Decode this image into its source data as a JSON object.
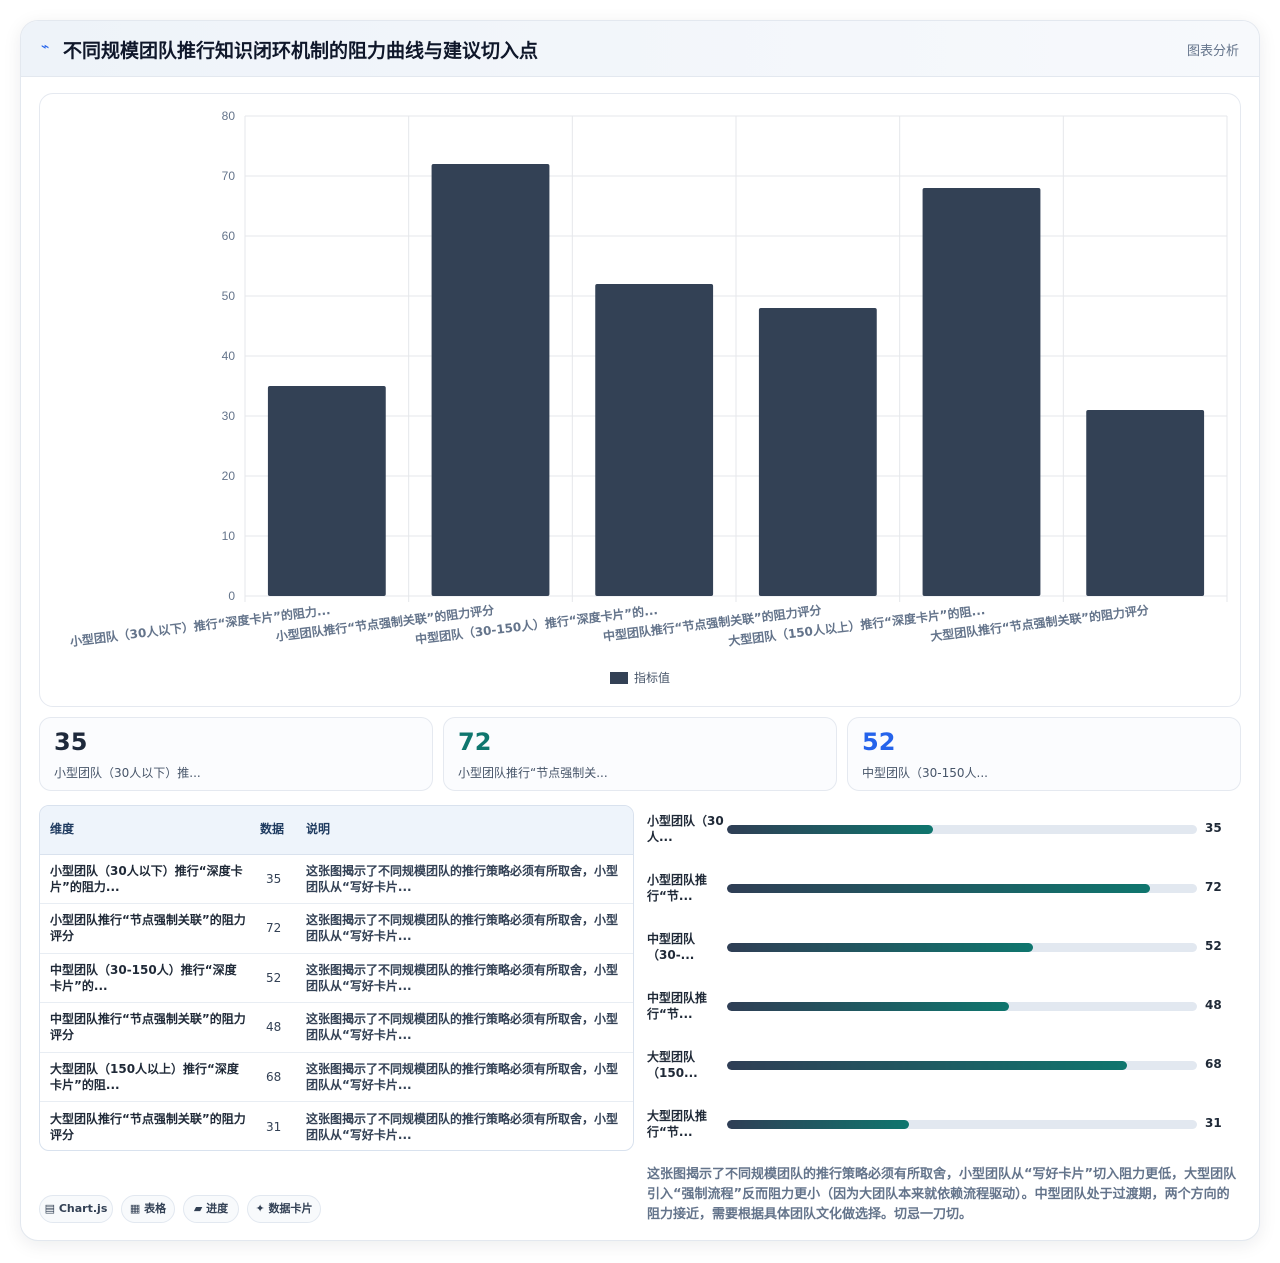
{
  "header": {
    "icon": "pulse-icon",
    "title": "不同规模团队推行知识闭环机制的阻力曲线与建议切入点",
    "link": "图表分析"
  },
  "chart_data": {
    "type": "bar",
    "categories": [
      "小型团队（30人以下）推行“深度卡片”的阻力...",
      "小型团队推行“节点强制关联”的阻力评分",
      "中型团队（30-150人）推行“深度卡片”的...",
      "中型团队推行“节点强制关联”的阻力评分",
      "大型团队（150人以上）推行“深度卡片”的阻...",
      "大型团队推行“节点强制关联”的阻力评分"
    ],
    "series": [
      {
        "name": "指标值",
        "values": [
          35,
          72,
          52,
          48,
          68,
          31
        ]
      }
    ],
    "ylim": [
      0,
      80
    ],
    "yticks": [
      0,
      10,
      20,
      30,
      40,
      50,
      60,
      70,
      80
    ],
    "grid": true,
    "legend_position": "bottom",
    "bar_color": "#334155"
  },
  "stats": [
    {
      "value": "35",
      "label": "小型团队（30人以下）推...",
      "color": "#1e293b"
    },
    {
      "value": "72",
      "label": "小型团队推行“节点强制关...",
      "color": "#0f766e"
    },
    {
      "value": "52",
      "label": "中型团队（30-150人...",
      "color": "#2563eb"
    }
  ],
  "table": {
    "headers": [
      "维度",
      "数据",
      "说明"
    ],
    "rows": [
      {
        "dim": "小型团队（30人以下）推行“深度卡片”的阻力...",
        "value": "35",
        "desc": "这张图揭示了不同规模团队的推行策略必须有所取舍，小型团队从“写好卡片..."
      },
      {
        "dim": "小型团队推行“节点强制关联”的阻力评分",
        "value": "72",
        "desc": "这张图揭示了不同规模团队的推行策略必须有所取舍，小型团队从“写好卡片..."
      },
      {
        "dim": "中型团队（30-150人）推行“深度卡片”的...",
        "value": "52",
        "desc": "这张图揭示了不同规模团队的推行策略必须有所取舍，小型团队从“写好卡片..."
      },
      {
        "dim": "中型团队推行“节点强制关联”的阻力评分",
        "value": "48",
        "desc": "这张图揭示了不同规模团队的推行策略必须有所取舍，小型团队从“写好卡片..."
      },
      {
        "dim": "大型团队（150人以上）推行“深度卡片”的阻...",
        "value": "68",
        "desc": "这张图揭示了不同规模团队的推行策略必须有所取舍，小型团队从“写好卡片..."
      },
      {
        "dim": "大型团队推行“节点强制关联”的阻力评分",
        "value": "31",
        "desc": "这张图揭示了不同规模团队的推行策略必须有所取舍，小型团队从“写好卡片..."
      }
    ]
  },
  "progress": {
    "max": 80,
    "items": [
      {
        "label": "小型团队（30人...",
        "value": 35
      },
      {
        "label": "小型团队推行“节...",
        "value": 72
      },
      {
        "label": "中型团队（30-...",
        "value": 52
      },
      {
        "label": "中型团队推行“节...",
        "value": 48
      },
      {
        "label": "大型团队（150...",
        "value": 68
      },
      {
        "label": "大型团队推行“节...",
        "value": 31
      }
    ]
  },
  "summary": "这张图揭示了不同规模团队的推行策略必须有所取舍，小型团队从“写好卡片”切入阻力更低，大型团队引入“强制流程”反而阻力更小（因为大团队本来就依赖流程驱动）。中型团队处于过渡期，两个方向的阻力接近，需要根据具体团队文化做选择。切忌一刀切。",
  "tags": [
    {
      "icon": "chart-icon",
      "label": "Chart.js"
    },
    {
      "icon": "table-icon",
      "label": "表格"
    },
    {
      "icon": "progress-icon",
      "label": "进度"
    },
    {
      "icon": "sparkle-icon",
      "label": "数据卡片"
    }
  ]
}
